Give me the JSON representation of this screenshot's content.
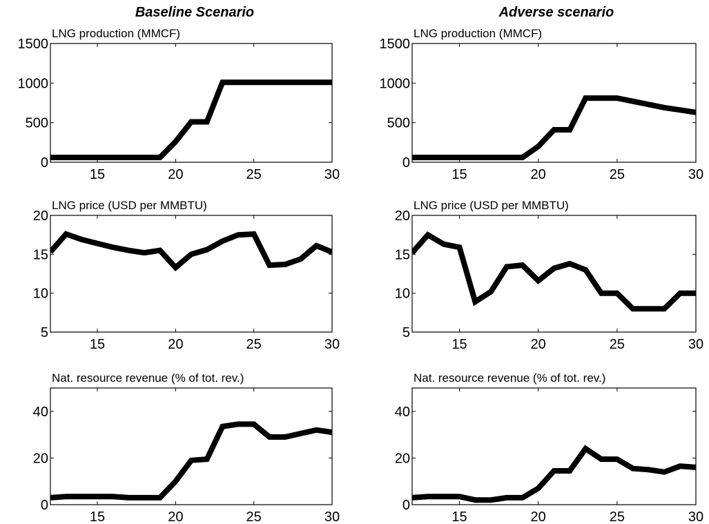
{
  "figure": {
    "column_titles": [
      "Baseline Scenario",
      "Adverse scenario"
    ]
  },
  "chart_data": [
    {
      "type": "line",
      "column": "Baseline Scenario",
      "title": "LNG production (MMCF)",
      "xlim": [
        12,
        30
      ],
      "ylim": [
        0,
        1500
      ],
      "xticks": [
        15,
        20,
        25,
        30
      ],
      "yticks": [
        0,
        500,
        1000,
        1500
      ],
      "x": [
        12,
        13,
        14,
        15,
        16,
        17,
        18,
        19,
        20,
        21,
        22,
        23,
        24,
        25,
        26,
        27,
        28,
        29,
        30
      ],
      "series": [
        {
          "values": [
            60,
            60,
            60,
            60,
            60,
            60,
            60,
            60,
            260,
            510,
            510,
            1010,
            1010,
            1010,
            1010,
            1010,
            1010,
            1010,
            1010
          ]
        }
      ],
      "color": "#000000"
    },
    {
      "type": "line",
      "column": "Adverse scenario",
      "title": "LNG production (MMCF)",
      "xlim": [
        12,
        30
      ],
      "ylim": [
        0,
        1500
      ],
      "xticks": [
        15,
        20,
        25,
        30
      ],
      "yticks": [
        0,
        500,
        1000,
        1500
      ],
      "x": [
        12,
        13,
        14,
        15,
        16,
        17,
        18,
        19,
        20,
        21,
        22,
        23,
        24,
        25,
        26,
        27,
        28,
        29,
        30
      ],
      "series": [
        {
          "values": [
            60,
            60,
            60,
            60,
            60,
            60,
            60,
            60,
            200,
            410,
            410,
            810,
            810,
            810,
            770,
            730,
            690,
            660,
            630
          ]
        }
      ],
      "color": "#000000"
    },
    {
      "type": "line",
      "column": "Baseline Scenario",
      "title": "LNG price (USD per MMBTU)",
      "xlim": [
        12,
        30
      ],
      "ylim": [
        5,
        20
      ],
      "xticks": [
        15,
        20,
        25,
        30
      ],
      "yticks": [
        5,
        10,
        15,
        20
      ],
      "x": [
        12,
        13,
        14,
        15,
        16,
        17,
        18,
        19,
        20,
        21,
        22,
        23,
        24,
        25,
        26,
        27,
        28,
        29,
        30
      ],
      "series": [
        {
          "values": [
            15.3,
            17.6,
            16.9,
            16.4,
            15.9,
            15.5,
            15.2,
            15.5,
            13.3,
            15.0,
            15.6,
            16.7,
            17.5,
            17.6,
            13.6,
            13.7,
            14.4,
            16.1,
            15.3
          ]
        }
      ],
      "color": "#000000"
    },
    {
      "type": "line",
      "column": "Adverse scenario",
      "title": "LNG price (USD per MMBTU)",
      "xlim": [
        12,
        30
      ],
      "ylim": [
        5,
        20
      ],
      "xticks": [
        15,
        20,
        25,
        30
      ],
      "yticks": [
        5,
        10,
        15,
        20
      ],
      "x": [
        12,
        13,
        14,
        15,
        16,
        17,
        18,
        19,
        20,
        21,
        22,
        23,
        24,
        25,
        26,
        27,
        28,
        29,
        30
      ],
      "series": [
        {
          "values": [
            15.2,
            17.5,
            16.3,
            15.9,
            8.9,
            10.2,
            13.4,
            13.6,
            11.6,
            13.2,
            13.8,
            13.0,
            10.0,
            10.0,
            8.0,
            8.0,
            8.0,
            10.0,
            10.0
          ]
        }
      ],
      "color": "#000000"
    },
    {
      "type": "line",
      "column": "Baseline Scenario",
      "title": "Nat. resource revenue (% of tot. rev.)",
      "xlim": [
        12,
        30
      ],
      "ylim": [
        0,
        50
      ],
      "xticks": [
        15,
        20,
        25,
        30
      ],
      "yticks": [
        0,
        20,
        40
      ],
      "x": [
        12,
        13,
        14,
        15,
        16,
        17,
        18,
        19,
        20,
        21,
        22,
        23,
        24,
        25,
        26,
        27,
        28,
        29,
        30
      ],
      "series": [
        {
          "values": [
            3.0,
            3.5,
            3.5,
            3.5,
            3.5,
            3.0,
            3.0,
            3.0,
            10.0,
            19.0,
            19.5,
            33.5,
            34.5,
            34.5,
            29.0,
            29.0,
            30.5,
            32.0,
            31.0
          ]
        }
      ],
      "color": "#000000"
    },
    {
      "type": "line",
      "column": "Adverse scenario",
      "title": "Nat. resource revenue (% of tot. rev.)",
      "xlim": [
        12,
        30
      ],
      "ylim": [
        0,
        50
      ],
      "xticks": [
        15,
        20,
        25,
        30
      ],
      "yticks": [
        0,
        20,
        40
      ],
      "x": [
        12,
        13,
        14,
        15,
        16,
        17,
        18,
        19,
        20,
        21,
        22,
        23,
        24,
        25,
        26,
        27,
        28,
        29,
        30
      ],
      "series": [
        {
          "values": [
            3.0,
            3.5,
            3.5,
            3.5,
            2.0,
            2.0,
            3.0,
            3.0,
            7.0,
            14.5,
            14.5,
            24.0,
            19.5,
            19.5,
            15.5,
            15.0,
            14.0,
            16.5,
            16.0
          ]
        }
      ],
      "color": "#000000"
    }
  ]
}
